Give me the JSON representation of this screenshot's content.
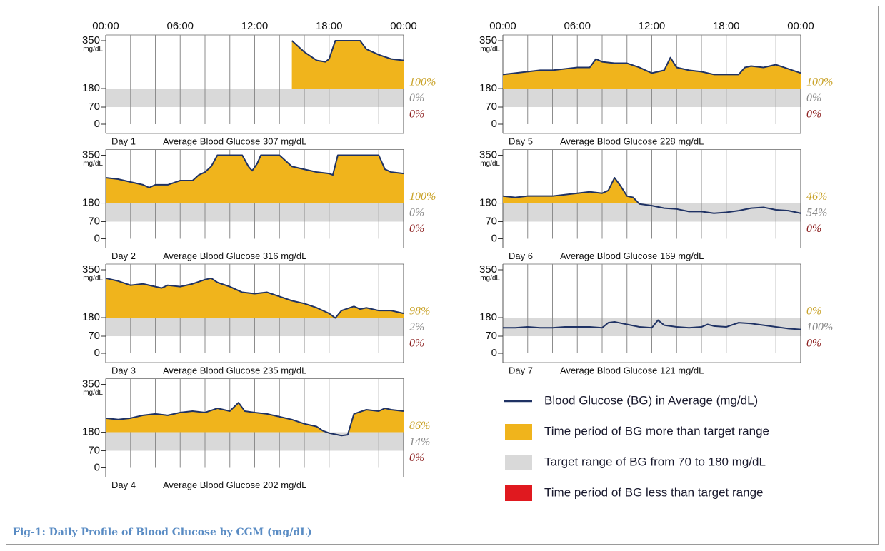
{
  "caption": "Fig-1: Daily Profile of Blood Glucose by CGM (mg/dL)",
  "legend": [
    {
      "label": "Blood Glucose (BG) in Average (mg/dL)",
      "color": "#1f3264"
    },
    {
      "label": "Time period of BG more than target range",
      "color": "#f0b41c"
    },
    {
      "label": "Target range of BG from 70 to 180 mg/dL",
      "color": "#d9d9d9"
    },
    {
      "label": "Time period of BG less than target range",
      "color": "#e0191f"
    }
  ],
  "chart_data": [
    {
      "type": "line",
      "day": "Day 1",
      "title": "Average Blood Glucose 307 mg/dL",
      "y_unit": "mg/dL",
      "xlim": [
        0,
        24
      ],
      "xticks": [
        {
          "value": 0,
          "label": "00:00"
        },
        {
          "value": 6,
          "label": "06:00"
        },
        {
          "value": 12,
          "label": "12:00"
        },
        {
          "value": 18,
          "label": "18:00"
        },
        {
          "value": 24,
          "label": "00:00"
        }
      ],
      "xgrid": [
        2,
        4,
        6,
        8,
        10,
        12,
        14,
        16,
        18,
        20,
        22
      ],
      "ylim": [
        0,
        350
      ],
      "yticks": [
        0,
        70,
        180,
        350
      ],
      "target_range": [
        70,
        180
      ],
      "time_in_range_labels": [
        "100%",
        "0%",
        "0%"
      ],
      "x": [
        15,
        16,
        17,
        17.7,
        18,
        18.5,
        20.5,
        21,
        22,
        23,
        24
      ],
      "values": [
        350,
        310,
        280,
        275,
        285,
        350,
        350,
        320,
        300,
        285,
        280
      ]
    },
    {
      "type": "line",
      "day": "Day 2",
      "title": "Average Blood Glucose 316 mg/dL",
      "y_unit": "mg/dL",
      "xlim": [
        0,
        24
      ],
      "xgrid": [
        2,
        4,
        6,
        8,
        10,
        12,
        14,
        16,
        18,
        20,
        22
      ],
      "ylim": [
        0,
        350
      ],
      "yticks": [
        0,
        70,
        180,
        350
      ],
      "target_range": [
        70,
        180
      ],
      "time_in_range_labels": [
        "100%",
        "0%",
        "0%"
      ],
      "x": [
        0,
        1,
        2,
        3,
        3.5,
        4,
        5,
        6,
        7,
        7.5,
        8,
        8.5,
        9,
        11,
        11.5,
        11.8,
        12.2,
        12.5,
        14,
        14.5,
        15,
        16,
        17,
        18,
        18.3,
        18.7,
        22,
        22.5,
        23,
        24
      ],
      "values": [
        270,
        265,
        255,
        245,
        235,
        245,
        245,
        260,
        260,
        280,
        290,
        310,
        350,
        350,
        310,
        295,
        320,
        350,
        350,
        330,
        310,
        300,
        290,
        285,
        280,
        350,
        350,
        300,
        290,
        285
      ]
    },
    {
      "type": "line",
      "day": "Day 3",
      "title": "Average Blood Glucose 235 mg/dL",
      "y_unit": "mg/dL",
      "xlim": [
        0,
        24
      ],
      "xgrid": [
        2,
        4,
        6,
        8,
        10,
        12,
        14,
        16,
        18,
        20,
        22
      ],
      "ylim": [
        0,
        350
      ],
      "yticks": [
        0,
        70,
        180,
        350
      ],
      "target_range": [
        70,
        180
      ],
      "time_in_range_labels": [
        "98%",
        "2%",
        "0%"
      ],
      "x": [
        0,
        1,
        2,
        3,
        4,
        4.5,
        5,
        6,
        7,
        8,
        8.5,
        9,
        10,
        11,
        12,
        13,
        14,
        15,
        16,
        17,
        18,
        18.5,
        19,
        20,
        20.5,
        21,
        22,
        23,
        24
      ],
      "values": [
        320,
        310,
        295,
        300,
        290,
        285,
        295,
        290,
        300,
        315,
        320,
        305,
        290,
        270,
        265,
        270,
        255,
        240,
        230,
        215,
        195,
        178,
        205,
        220,
        210,
        215,
        205,
        205,
        195
      ]
    },
    {
      "type": "line",
      "day": "Day 4",
      "title": "Average Blood Glucose 202 mg/dL",
      "y_unit": "mg/dL",
      "xlim": [
        0,
        24
      ],
      "xgrid": [
        2,
        4,
        6,
        8,
        10,
        12,
        14,
        16,
        18,
        20,
        22
      ],
      "ylim": [
        0,
        350
      ],
      "yticks": [
        0,
        70,
        180,
        350
      ],
      "target_range": [
        70,
        180
      ],
      "time_in_range_labels": [
        "86%",
        "14%",
        "0%"
      ],
      "x": [
        0,
        1,
        2,
        3,
        4,
        5,
        6,
        7,
        8,
        9,
        10,
        10.7,
        11.2,
        12,
        13,
        14,
        15,
        16,
        17,
        17.5,
        18,
        19,
        19.5,
        20,
        21,
        22,
        22.5,
        23,
        24
      ],
      "values": [
        230,
        225,
        230,
        240,
        245,
        240,
        250,
        255,
        250,
        265,
        255,
        285,
        255,
        250,
        245,
        235,
        225,
        210,
        200,
        185,
        175,
        160,
        165,
        245,
        260,
        255,
        265,
        260,
        255
      ]
    },
    {
      "type": "line",
      "day": "Day 5",
      "title": "Average Blood Glucose 228 mg/dL",
      "y_unit": "mg/dL",
      "xlim": [
        0,
        24
      ],
      "xticks": [
        {
          "value": 0,
          "label": "00:00"
        },
        {
          "value": 6,
          "label": "06:00"
        },
        {
          "value": 12,
          "label": "12:00"
        },
        {
          "value": 18,
          "label": "18:00"
        },
        {
          "value": 24,
          "label": "00:00"
        }
      ],
      "xgrid": [
        2,
        4,
        6,
        8,
        10,
        12,
        14,
        16,
        18,
        20,
        22
      ],
      "ylim": [
        0,
        350
      ],
      "yticks": [
        0,
        70,
        180,
        350
      ],
      "target_range": [
        70,
        180
      ],
      "time_in_range_labels": [
        "100%",
        "0%",
        "0%"
      ],
      "x": [
        0,
        1,
        2,
        3,
        4,
        5,
        6,
        7,
        7.5,
        8,
        9,
        10,
        11,
        12,
        13,
        13.5,
        14,
        15,
        16,
        17,
        18,
        19,
        19.5,
        20,
        21,
        22,
        23,
        24
      ],
      "values": [
        230,
        235,
        240,
        245,
        245,
        250,
        255,
        255,
        285,
        275,
        270,
        270,
        255,
        235,
        245,
        290,
        255,
        245,
        240,
        230,
        230,
        230,
        255,
        260,
        255,
        265,
        250,
        235
      ]
    },
    {
      "type": "line",
      "day": "Day 6",
      "title": "Average Blood Glucose 169 mg/dL",
      "y_unit": "mg/dL",
      "xlim": [
        0,
        24
      ],
      "xgrid": [
        2,
        4,
        6,
        8,
        10,
        12,
        14,
        16,
        18,
        20,
        22
      ],
      "ylim": [
        0,
        350
      ],
      "yticks": [
        0,
        70,
        180,
        350
      ],
      "target_range": [
        70,
        180
      ],
      "time_in_range_labels": [
        "46%",
        "54%",
        "0%"
      ],
      "x": [
        0,
        1,
        2,
        3,
        4,
        5,
        6,
        7,
        8,
        8.5,
        9,
        9.5,
        10,
        10.5,
        11,
        12,
        13,
        14,
        15,
        16,
        17,
        18,
        19,
        20,
        21,
        22,
        23,
        24
      ],
      "values": [
        205,
        200,
        205,
        205,
        205,
        210,
        215,
        220,
        215,
        225,
        270,
        240,
        205,
        200,
        175,
        165,
        150,
        145,
        130,
        130,
        120,
        125,
        135,
        150,
        155,
        140,
        135,
        120
      ]
    },
    {
      "type": "line",
      "day": "Day 7",
      "title": "Average Blood Glucose 121 mg/dL",
      "y_unit": "mg/dL",
      "xlim": [
        0,
        24
      ],
      "xgrid": [
        2,
        4,
        6,
        8,
        10,
        12,
        14,
        16,
        18,
        20,
        22
      ],
      "ylim": [
        0,
        350
      ],
      "yticks": [
        0,
        70,
        180,
        350
      ],
      "target_range": [
        70,
        180
      ],
      "time_in_range_labels": [
        "0%",
        "100%",
        "0%"
      ],
      "x": [
        0,
        1,
        2,
        3,
        4,
        5,
        6,
        7,
        8,
        8.5,
        9,
        10,
        11,
        12,
        12.5,
        13,
        14,
        15,
        16,
        16.5,
        17,
        18,
        19,
        20,
        21,
        22,
        23,
        24
      ],
      "values": [
        120,
        120,
        125,
        120,
        120,
        125,
        125,
        125,
        120,
        150,
        155,
        140,
        125,
        120,
        165,
        135,
        125,
        120,
        125,
        140,
        130,
        125,
        150,
        145,
        135,
        125,
        115,
        110
      ]
    }
  ]
}
